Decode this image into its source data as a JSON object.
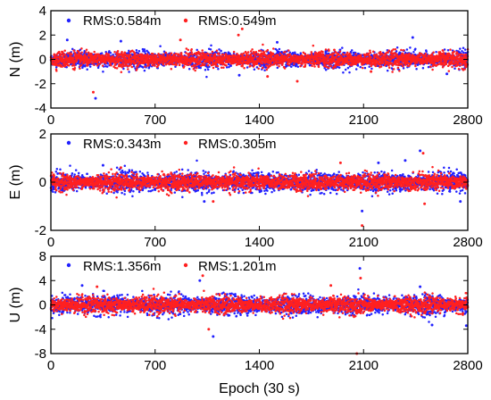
{
  "chart_data": [
    {
      "type": "scatter",
      "ylabel": "N (m)",
      "xlabel": "",
      "xlim": [
        0,
        2800
      ],
      "ylim": [
        -4,
        4
      ],
      "xticks": [
        0,
        700,
        1400,
        2100,
        2800
      ],
      "yticks": [
        -4,
        -2,
        0,
        2,
        4
      ],
      "x_tick_labels": [
        "0",
        "700",
        "1400",
        "2100",
        "2800"
      ],
      "y_tick_labels": [
        "-4",
        "-2",
        "0",
        "2",
        "4"
      ],
      "legend": "top-left",
      "grid": false,
      "series": [
        {
          "name": "RMS:0.584m",
          "color": "#2121ff",
          "rms": 0.584,
          "extremes": [
            [
              300,
              -3.2
            ],
            [
              1520,
              1.4
            ],
            [
              2430,
              1.8
            ],
            [
              110,
              1.6
            ],
            [
              470,
              1.5
            ],
            [
              1265,
              -1.3
            ],
            [
              2660,
              -1.2
            ]
          ]
        },
        {
          "name": "RMS:0.549m",
          "color": "#ff2020",
          "rms": 0.549,
          "extremes": [
            [
              1285,
              2.5
            ],
            [
              285,
              -2.7
            ],
            [
              1260,
              2.0
            ],
            [
              870,
              1.6
            ],
            [
              1655,
              -1.8
            ],
            [
              1455,
              -1.4
            ],
            [
              2150,
              -1.0
            ]
          ]
        }
      ]
    },
    {
      "type": "scatter",
      "ylabel": "E (m)",
      "xlabel": "",
      "xlim": [
        0,
        2800
      ],
      "ylim": [
        -2,
        2
      ],
      "xticks": [
        0,
        700,
        1400,
        2100,
        2800
      ],
      "yticks": [
        -2,
        0,
        2
      ],
      "x_tick_labels": [
        "0",
        "700",
        "1400",
        "2100",
        "2800"
      ],
      "y_tick_labels": [
        "-2",
        "0",
        "2"
      ],
      "legend": "top-left",
      "grid": false,
      "series": [
        {
          "name": "RMS:0.343m",
          "color": "#2121ff",
          "rms": 0.343,
          "extremes": [
            [
              2480,
              1.3
            ],
            [
              2090,
              -1.2
            ],
            [
              2380,
              0.9
            ],
            [
              2200,
              0.8
            ],
            [
              1030,
              -0.8
            ],
            [
              2750,
              -0.8
            ],
            [
              350,
              0.7
            ]
          ]
        },
        {
          "name": "RMS:0.305m",
          "color": "#ff2020",
          "rms": 0.305,
          "extremes": [
            [
              2090,
              -1.8
            ],
            [
              2500,
              1.2
            ],
            [
              1945,
              0.8
            ],
            [
              1090,
              -0.8
            ],
            [
              2510,
              -0.9
            ],
            [
              470,
              0.6
            ]
          ]
        }
      ]
    },
    {
      "type": "scatter",
      "ylabel": "U (m)",
      "xlabel": "Epoch (30 s)",
      "xlim": [
        0,
        2800
      ],
      "ylim": [
        -8,
        8
      ],
      "xticks": [
        0,
        700,
        1400,
        2100,
        2800
      ],
      "yticks": [
        -8,
        -4,
        0,
        4,
        8
      ],
      "x_tick_labels": [
        "0",
        "700",
        "1400",
        "2100",
        "2800"
      ],
      "y_tick_labels": [
        "-8",
        "-4",
        "0",
        "4",
        "8"
      ],
      "legend": "top-left",
      "grid": false,
      "series": [
        {
          "name": "RMS:1.356m",
          "color": "#2121ff",
          "rms": 1.356,
          "extremes": [
            [
              2075,
              6.0
            ],
            [
              1090,
              -5.2
            ],
            [
              2480,
              3.0
            ],
            [
              1000,
              4.0
            ],
            [
              2560,
              -3.3
            ],
            [
              2790,
              -3.4
            ],
            [
              210,
              3.2
            ]
          ]
        },
        {
          "name": "RMS:1.201m",
          "color": "#ff2020",
          "rms": 1.201,
          "extremes": [
            [
              2055,
              -8.0
            ],
            [
              1020,
              4.8
            ],
            [
              1880,
              3.2
            ],
            [
              1060,
              -4.0
            ],
            [
              2080,
              4.4
            ],
            [
              310,
              3.0
            ]
          ]
        }
      ]
    }
  ]
}
